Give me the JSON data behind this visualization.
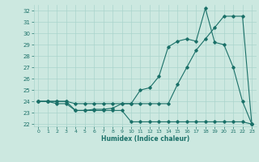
{
  "xlabel": "Humidex (Indice chaleur)",
  "bg_color": "#cce8e0",
  "grid_color": "#aad4cc",
  "line_color": "#1a7068",
  "xlim": [
    -0.5,
    23.5
  ],
  "ylim": [
    21.8,
    32.5
  ],
  "xticks": [
    0,
    1,
    2,
    3,
    4,
    5,
    6,
    7,
    8,
    9,
    10,
    11,
    12,
    13,
    14,
    15,
    16,
    17,
    18,
    19,
    20,
    21,
    22,
    23
  ],
  "yticks": [
    22,
    23,
    24,
    25,
    26,
    27,
    28,
    29,
    30,
    31,
    32
  ],
  "line1_x": [
    0,
    1,
    2,
    3,
    4,
    5,
    6,
    7,
    8,
    9,
    10,
    11,
    12,
    13,
    14,
    15,
    16,
    17,
    18,
    19,
    20,
    21,
    22,
    23
  ],
  "line1_y": [
    24.0,
    24.0,
    23.8,
    23.8,
    23.2,
    23.2,
    23.3,
    23.3,
    23.4,
    23.8,
    23.8,
    25.0,
    25.2,
    26.2,
    28.8,
    29.3,
    29.5,
    29.3,
    32.2,
    29.2,
    29.0,
    27.0,
    24.0,
    22.0
  ],
  "line2_x": [
    0,
    1,
    2,
    3,
    4,
    5,
    6,
    7,
    8,
    9,
    10,
    11,
    12,
    13,
    14,
    15,
    16,
    17,
    18,
    19,
    20,
    21,
    22,
    23
  ],
  "line2_y": [
    24.0,
    24.0,
    24.0,
    24.0,
    23.8,
    23.8,
    23.8,
    23.8,
    23.8,
    23.8,
    23.8,
    23.8,
    23.8,
    23.8,
    23.8,
    25.5,
    27.0,
    28.5,
    29.5,
    30.5,
    31.5,
    31.5,
    31.5,
    22.0
  ],
  "line3_x": [
    0,
    1,
    2,
    3,
    4,
    5,
    6,
    7,
    8,
    9,
    10,
    11,
    12,
    13,
    14,
    15,
    16,
    17,
    18,
    19,
    20,
    21,
    22,
    23
  ],
  "line3_y": [
    24.0,
    24.0,
    24.0,
    24.0,
    23.2,
    23.2,
    23.2,
    23.2,
    23.2,
    23.2,
    22.2,
    22.2,
    22.2,
    22.2,
    22.2,
    22.2,
    22.2,
    22.2,
    22.2,
    22.2,
    22.2,
    22.2,
    22.2,
    22.0
  ]
}
